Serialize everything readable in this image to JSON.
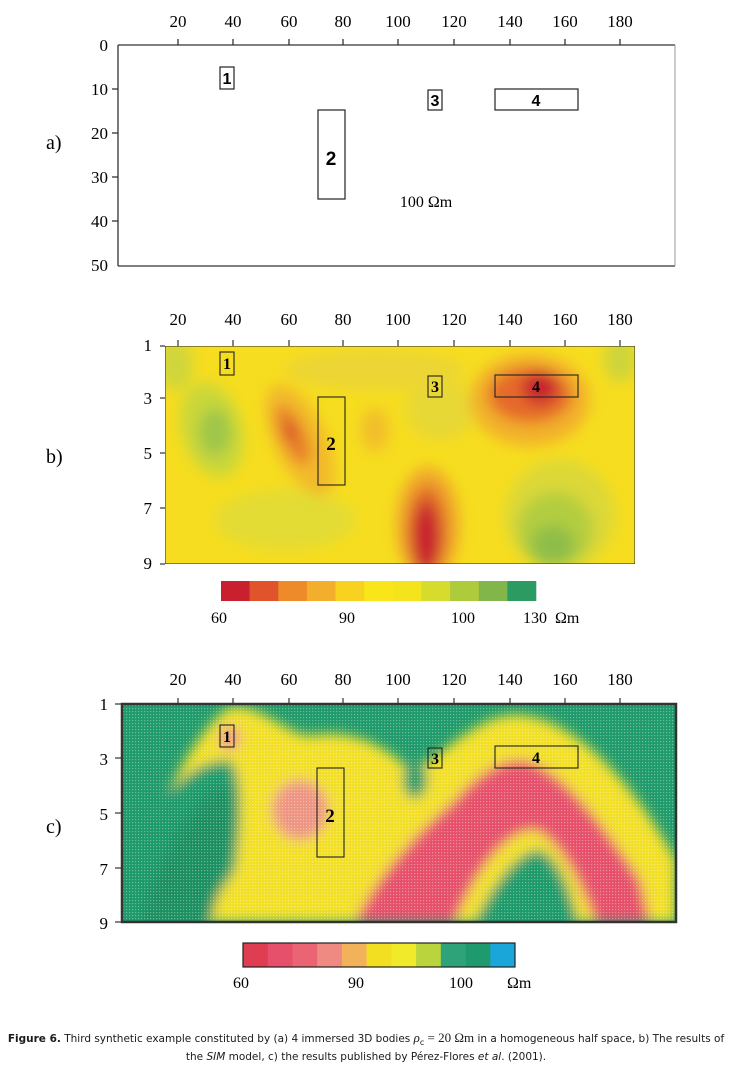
{
  "x_ticks": [
    "20",
    "40",
    "60",
    "80",
    "100",
    "120",
    "140",
    "160",
    "180"
  ],
  "panel_a": {
    "panel_label": "a)",
    "y_ticks": [
      "0",
      "10",
      "20",
      "30",
      "40",
      "50"
    ],
    "bodies": [
      "1",
      "2",
      "3",
      "4"
    ],
    "background_label": "100 Ωm"
  },
  "panel_b": {
    "panel_label": "b)",
    "y_ticks": [
      "1",
      "3",
      "5",
      "7",
      "9"
    ],
    "bodies": [
      "1",
      "2",
      "3",
      "4"
    ],
    "colorbar": {
      "tick_labels": [
        "60",
        "90",
        "100",
        "130"
      ],
      "unit": "Ωm",
      "colors": [
        "#c8202f",
        "#e0542c",
        "#ee8a2a",
        "#f3ae2b",
        "#f7d21e",
        "#f9e61a",
        "#f3e41c",
        "#d6dc2e",
        "#aecb3c",
        "#82b64a",
        "#2c9a63"
      ]
    }
  },
  "panel_c": {
    "panel_label": "c)",
    "y_ticks": [
      "1",
      "3",
      "5",
      "7",
      "9"
    ],
    "bodies": [
      "1",
      "2",
      "3",
      "4"
    ],
    "colorbar": {
      "tick_labels": [
        "60",
        "90",
        "100"
      ],
      "unit": "Ωm",
      "colors": [
        "#de3d52",
        "#e7506a",
        "#ea6474",
        "#ee8a82",
        "#f2b25a",
        "#f3df22",
        "#f1ea2a",
        "#b9d43c",
        "#2ea37a",
        "#1e9a6e",
        "#1aa6d8"
      ]
    }
  },
  "caption": {
    "figure_label": "Figure 6.",
    "text_1": " Third synthetic example constituted by (a) 4 immersed 3D bodies ",
    "rho_symbol": "ρ",
    "rho_subscript": "c",
    "rho_value": " = 20 Ωm",
    "text_2": " in a homogeneous half space, b) The results of the ",
    "model_name": "SIM",
    "text_3": " model, c) the results published by Pérez-Flores ",
    "etal": "et al",
    "text_4": ". (2001)."
  }
}
